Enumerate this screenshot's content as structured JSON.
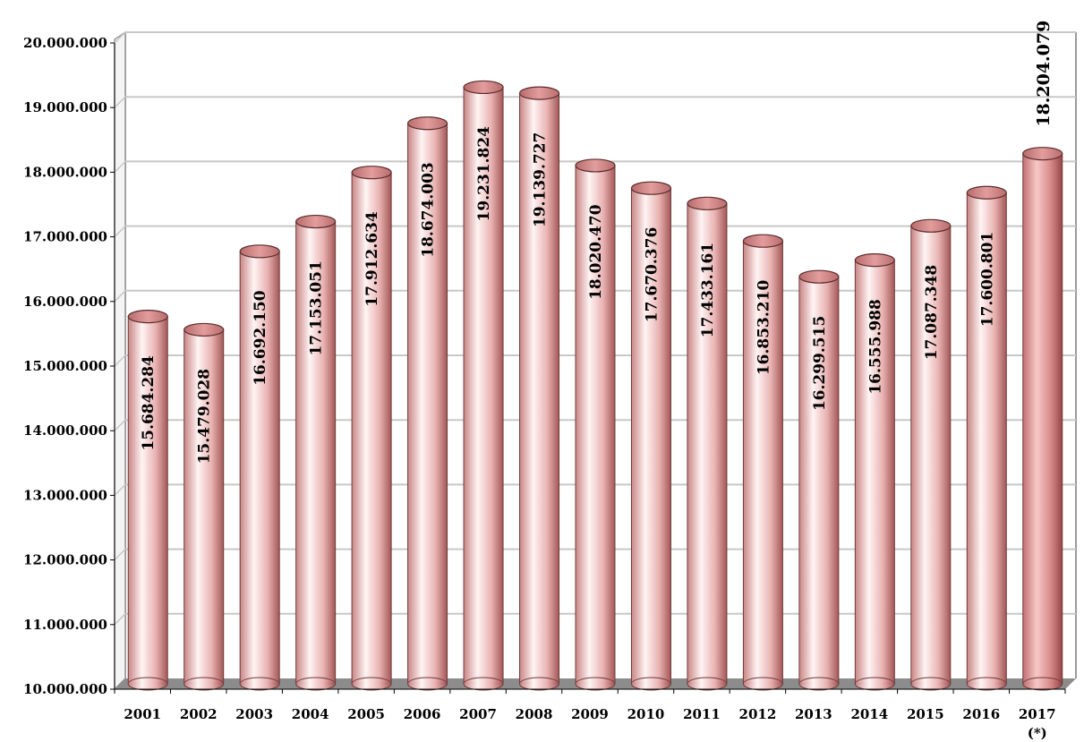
{
  "chart_data": {
    "type": "bar",
    "style": "3d-cylinder",
    "title": "",
    "xlabel": "",
    "ylabel": "",
    "ylim": [
      10000000,
      20000000
    ],
    "ytick_step": 1000000,
    "yticks": [
      "10.000.000",
      "11.000.000",
      "12.000.000",
      "13.000.000",
      "14.000.000",
      "15.000.000",
      "16.000.000",
      "17.000.000",
      "18.000.000",
      "19.000.000",
      "20.000.000"
    ],
    "grid": true,
    "legend": "none",
    "categories": [
      "2001",
      "2002",
      "2003",
      "2004",
      "2005",
      "2006",
      "2007",
      "2008",
      "2009",
      "2010",
      "2011",
      "2012",
      "2013",
      "2014",
      "2015",
      "2016",
      "2017"
    ],
    "category_footnote": {
      "index": 16,
      "text": "(*)"
    },
    "values": [
      15684284,
      15479028,
      16692150,
      17153051,
      17912634,
      18674003,
      19231824,
      19139727,
      18020470,
      17670376,
      17433161,
      16853210,
      16299515,
      16555988,
      17087348,
      17600801,
      18204079
    ],
    "value_labels": [
      "15.684.284",
      "15.479.028",
      "16.692.150",
      "17.153.051",
      "17.912.634",
      "18.674.003",
      "19.231.824",
      "19.139.727",
      "18.020.470",
      "17.670.376",
      "17.433.161",
      "16.853.210",
      "16.299.515",
      "16.555.988",
      "17.087.348",
      "17.600.801",
      "18.204.079"
    ],
    "colors": {
      "bar_light": "#fbe4e4",
      "bar_mid": "#e8a8a8",
      "bar_dark": "#a85a5a",
      "bar_highlight_mid": "#d98b8b",
      "bar_highlight_dark": "#9a4848",
      "floor": "#8c8c8c",
      "gridline": "#c8c8c8",
      "wall_edge": "#9a9a9a"
    }
  }
}
